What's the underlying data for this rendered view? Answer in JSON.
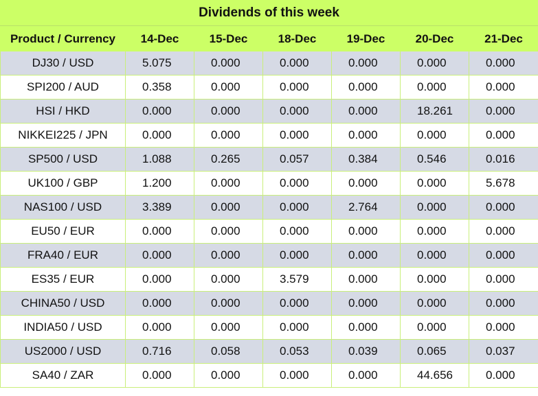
{
  "title": "Dividends of this week",
  "columns": [
    "Product / Currency",
    "14-Dec",
    "15-Dec",
    "18-Dec",
    "19-Dec",
    "20-Dec",
    "21-Dec"
  ],
  "rows": [
    [
      "DJ30 / USD",
      "5.075",
      "0.000",
      "0.000",
      "0.000",
      "0.000",
      "0.000"
    ],
    [
      "SPI200 / AUD",
      "0.358",
      "0.000",
      "0.000",
      "0.000",
      "0.000",
      "0.000"
    ],
    [
      "HSI / HKD",
      "0.000",
      "0.000",
      "0.000",
      "0.000",
      "18.261",
      "0.000"
    ],
    [
      "NIKKEI225 / JPN",
      "0.000",
      "0.000",
      "0.000",
      "0.000",
      "0.000",
      "0.000"
    ],
    [
      "SP500 / USD",
      "1.088",
      "0.265",
      "0.057",
      "0.384",
      "0.546",
      "0.016"
    ],
    [
      "UK100 / GBP",
      "1.200",
      "0.000",
      "0.000",
      "0.000",
      "0.000",
      "5.678"
    ],
    [
      "NAS100 / USD",
      "3.389",
      "0.000",
      "0.000",
      "2.764",
      "0.000",
      "0.000"
    ],
    [
      "EU50 / EUR",
      "0.000",
      "0.000",
      "0.000",
      "0.000",
      "0.000",
      "0.000"
    ],
    [
      "FRA40 / EUR",
      "0.000",
      "0.000",
      "0.000",
      "0.000",
      "0.000",
      "0.000"
    ],
    [
      "ES35 / EUR",
      "0.000",
      "0.000",
      "3.579",
      "0.000",
      "0.000",
      "0.000"
    ],
    [
      "CHINA50 / USD",
      "0.000",
      "0.000",
      "0.000",
      "0.000",
      "0.000",
      "0.000"
    ],
    [
      "INDIA50 / USD",
      "0.000",
      "0.000",
      "0.000",
      "0.000",
      "0.000",
      "0.000"
    ],
    [
      "US2000 / USD",
      "0.716",
      "0.058",
      "0.053",
      "0.039",
      "0.065",
      "0.037"
    ],
    [
      "SA40 / ZAR",
      "0.000",
      "0.000",
      "0.000",
      "0.000",
      "44.656",
      "0.000"
    ]
  ],
  "colors": {
    "header_bg": "#ccff66",
    "stripe_bg": "#d6dae5",
    "row_bg": "#ffffff",
    "grid_line": "#c9ef7a"
  }
}
